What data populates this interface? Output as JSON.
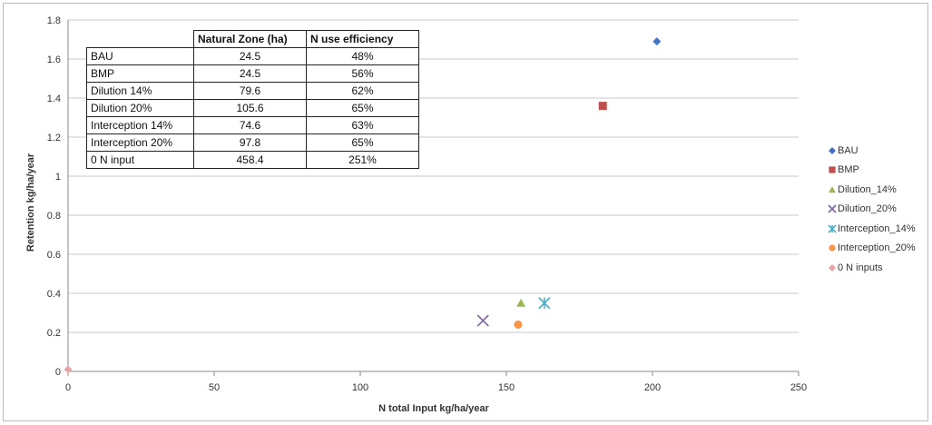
{
  "chart_data": {
    "type": "scatter",
    "xlabel": "N total Input kg/ha/year",
    "ylabel": "Retention kg/ha/year",
    "xlim": [
      0,
      250
    ],
    "ylim": [
      0,
      1.8
    ],
    "x_ticks": [
      "0",
      "50",
      "100",
      "150",
      "200",
      "250"
    ],
    "y_ticks": [
      "0",
      "0.2",
      "0.4",
      "0.6",
      "0.8",
      "1",
      "1.2",
      "1.4",
      "1.6",
      "1.8"
    ],
    "grid": "horizontal",
    "legend_position": "right",
    "series": [
      {
        "name": "BAU",
        "marker": "diamond",
        "color": "#4472C4",
        "x": [
          201.5
        ],
        "y": [
          1.69
        ]
      },
      {
        "name": "BMP",
        "marker": "square",
        "color": "#C0504D",
        "x": [
          183
        ],
        "y": [
          1.36
        ]
      },
      {
        "name": "Dilution_14%",
        "marker": "triangle",
        "color": "#9BBB59",
        "x": [
          155
        ],
        "y": [
          0.35
        ]
      },
      {
        "name": "Dilution_20%",
        "marker": "x",
        "color": "#8064A2",
        "x": [
          142
        ],
        "y": [
          0.26
        ]
      },
      {
        "name": "Interception_14%",
        "marker": "star",
        "color": "#4BACC6",
        "x": [
          163
        ],
        "y": [
          0.35
        ]
      },
      {
        "name": "Interception_20%",
        "marker": "circle",
        "color": "#F79646",
        "x": [
          154
        ],
        "y": [
          0.24
        ]
      },
      {
        "name": "0 N inputs",
        "marker": "diamond",
        "color": "#E6A5A5",
        "x": [
          0
        ],
        "y": [
          0.01
        ]
      }
    ]
  },
  "table": {
    "headers": [
      "",
      "Natural Zone (ha)",
      "N use efficiency"
    ],
    "rows": [
      [
        "BAU",
        "24.5",
        "48%"
      ],
      [
        "BMP",
        "24.5",
        "56%"
      ],
      [
        "Dilution 14%",
        "79.6",
        "62%"
      ],
      [
        "Dilution 20%",
        "105.6",
        "65%"
      ],
      [
        "Interception 14%",
        "74.6",
        "63%"
      ],
      [
        "Interception 20%",
        "97.8",
        "65%"
      ],
      [
        "0 N input",
        "458.4",
        "251%"
      ]
    ]
  }
}
